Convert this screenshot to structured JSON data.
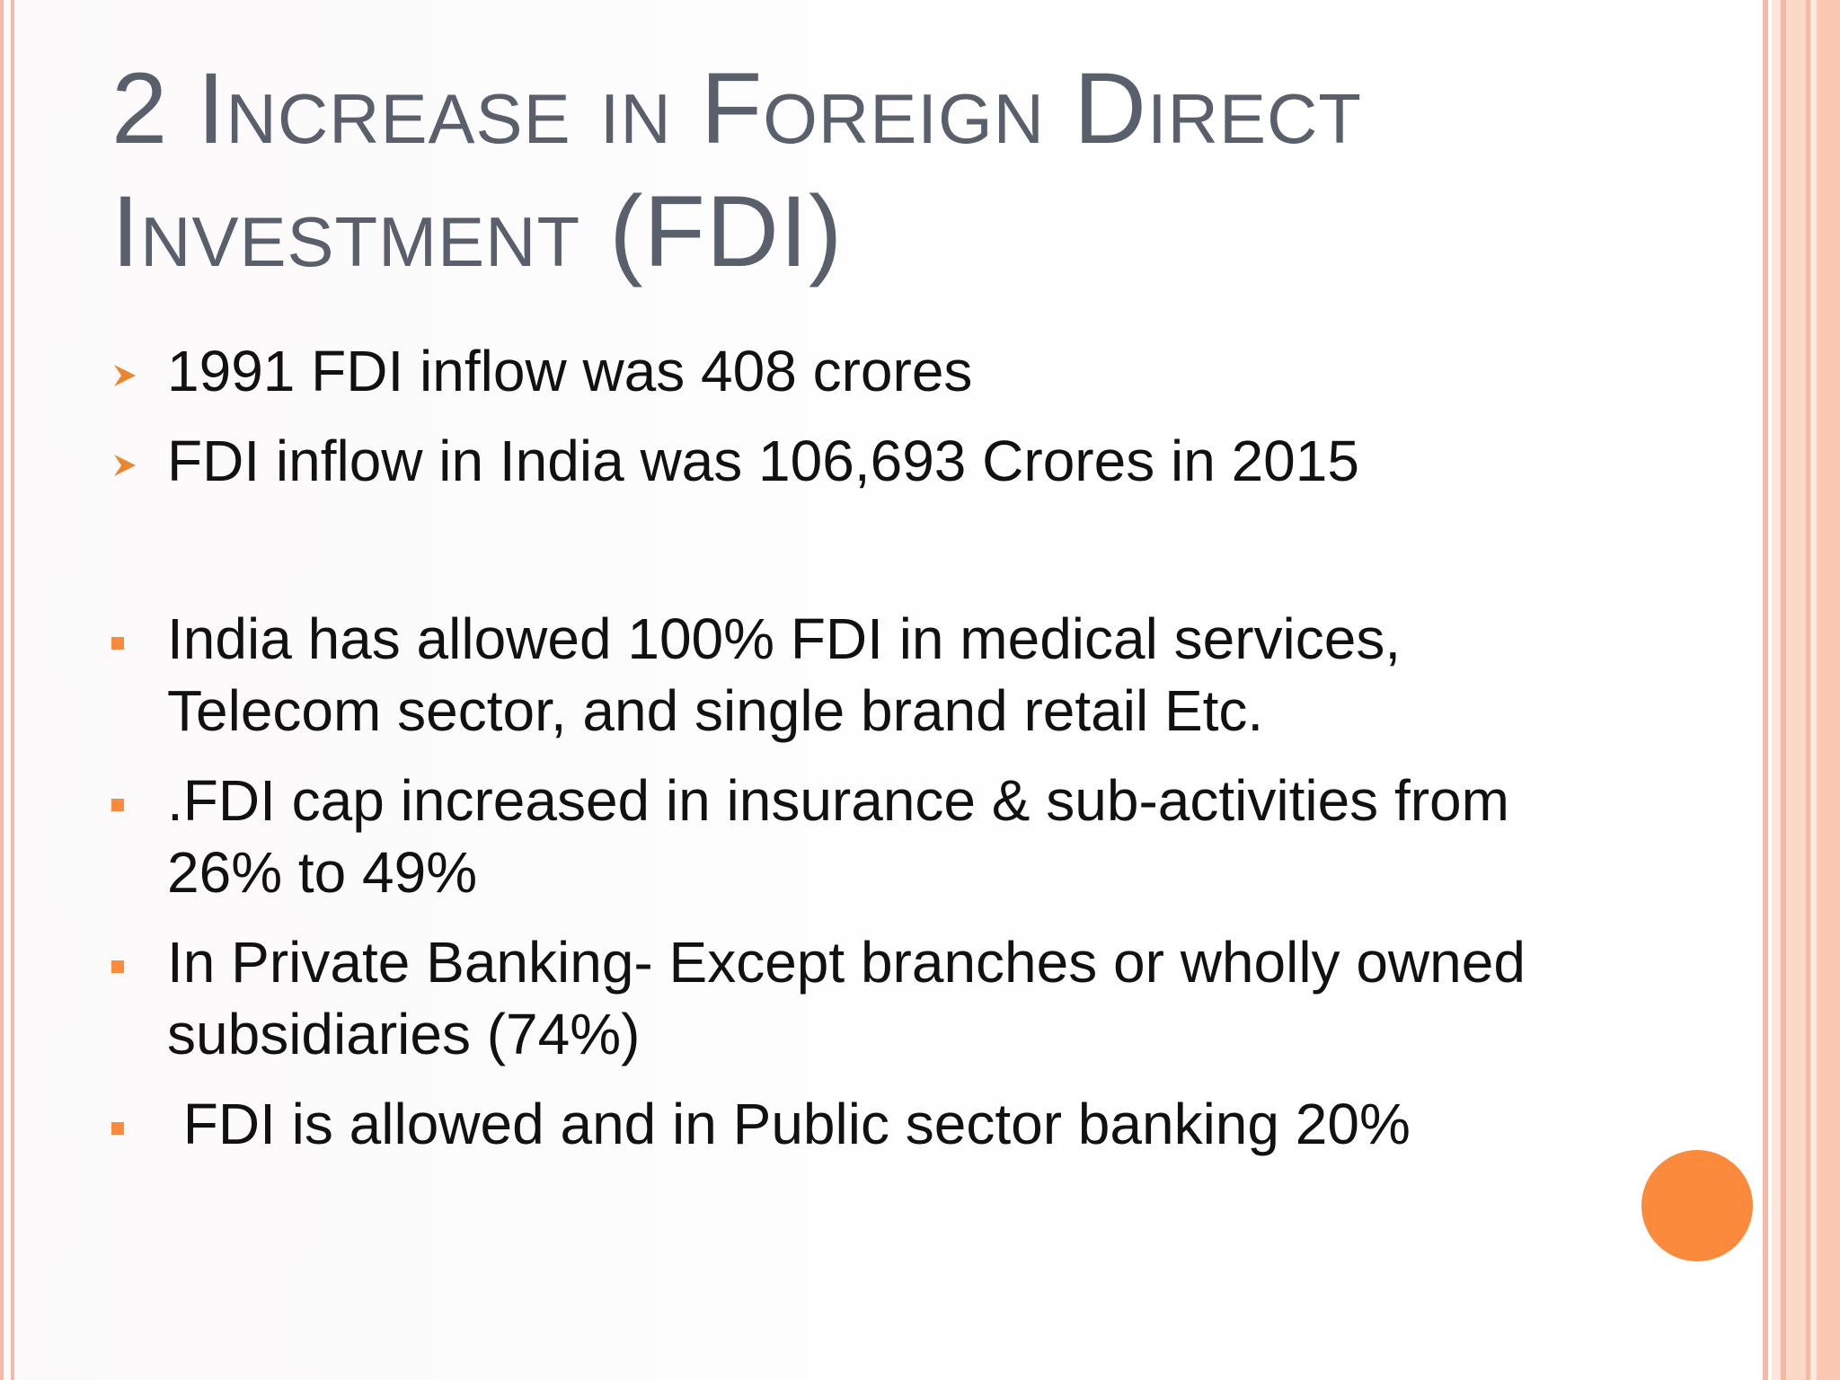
{
  "slide": {
    "title_line1": "2 Increase in Foreign Direct",
    "title_line2": "Investment (FDI)",
    "bullets": [
      {
        "marker": "arrow-bullet-icon",
        "text": "1991 FDI inflow was 408 crores"
      },
      {
        "marker": "arrow-bullet-icon",
        "text": "FDI inflow in India was 106,693 Crores in 2015"
      },
      {
        "marker": "square-bullet-icon",
        "text": "India has allowed 100% FDI in medical services, Telecom sector, and single brand retail Etc."
      },
      {
        "marker": "square-bullet-icon",
        "text": ".FDI cap increased in insurance & sub-activities from 26% to 49%"
      },
      {
        "marker": "square-bullet-icon",
        "text": "In Private Banking- Except branches or wholly owned subsidiaries (74%)"
      },
      {
        "marker": "square-bullet-icon",
        "text": " FDI is allowed and in Public sector banking 20%"
      }
    ]
  },
  "theme": {
    "title_color": "#59606b",
    "text_color": "#111111",
    "accent_orange": "#fb8a3c",
    "border_peach": "#f6b9a4"
  }
}
